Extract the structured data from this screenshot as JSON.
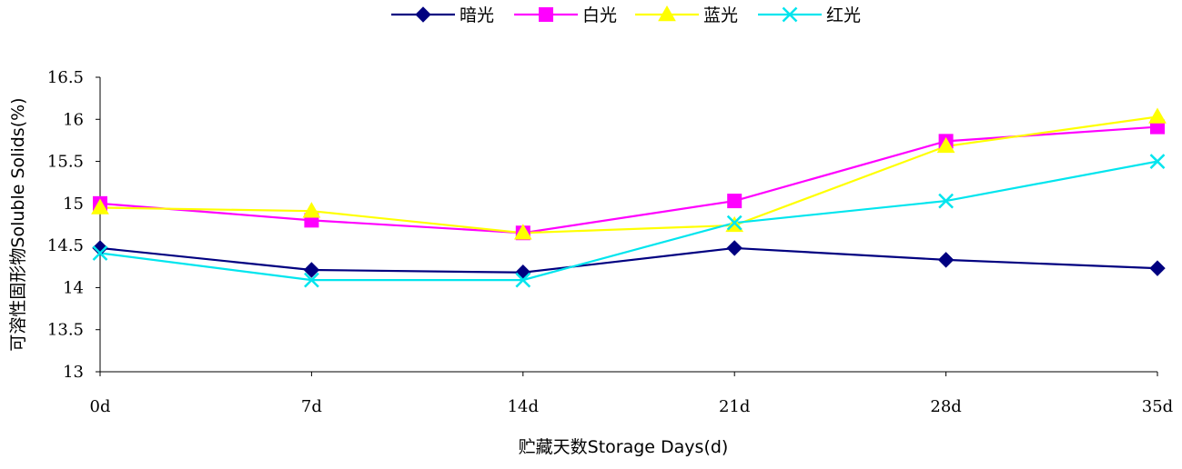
{
  "chart_data": {
    "type": "line",
    "title": "",
    "xlabel": "贮藏天数Storage Days(d)",
    "ylabel": "可溶性固形物Soluble Solids(%)",
    "categories": [
      "0d",
      "7d",
      "14d",
      "21d",
      "28d",
      "35d"
    ],
    "ylim": [
      13,
      16.5
    ],
    "ytick_step": 0.5,
    "yticks": [
      "13",
      "13.5",
      "14",
      "14.5",
      "15",
      "15.5",
      "16",
      "16.5"
    ],
    "grid": false,
    "legend_position": "top-center",
    "series": [
      {
        "name": "暗光",
        "color": "#000080",
        "marker": "diamond",
        "values": [
          14.47,
          14.21,
          14.18,
          14.47,
          14.33,
          14.23
        ]
      },
      {
        "name": "白光",
        "color": "#FF00FF",
        "marker": "square",
        "values": [
          15.0,
          14.8,
          14.65,
          15.03,
          15.74,
          15.91
        ]
      },
      {
        "name": "蓝光",
        "color": "#FFFF00",
        "marker": "triangle",
        "values": [
          14.95,
          14.91,
          14.65,
          14.74,
          15.68,
          16.03
        ]
      },
      {
        "name": "红光",
        "color": "#00E5EE",
        "marker": "x",
        "values": [
          14.41,
          14.09,
          14.09,
          14.77,
          15.03,
          15.5
        ]
      }
    ]
  }
}
